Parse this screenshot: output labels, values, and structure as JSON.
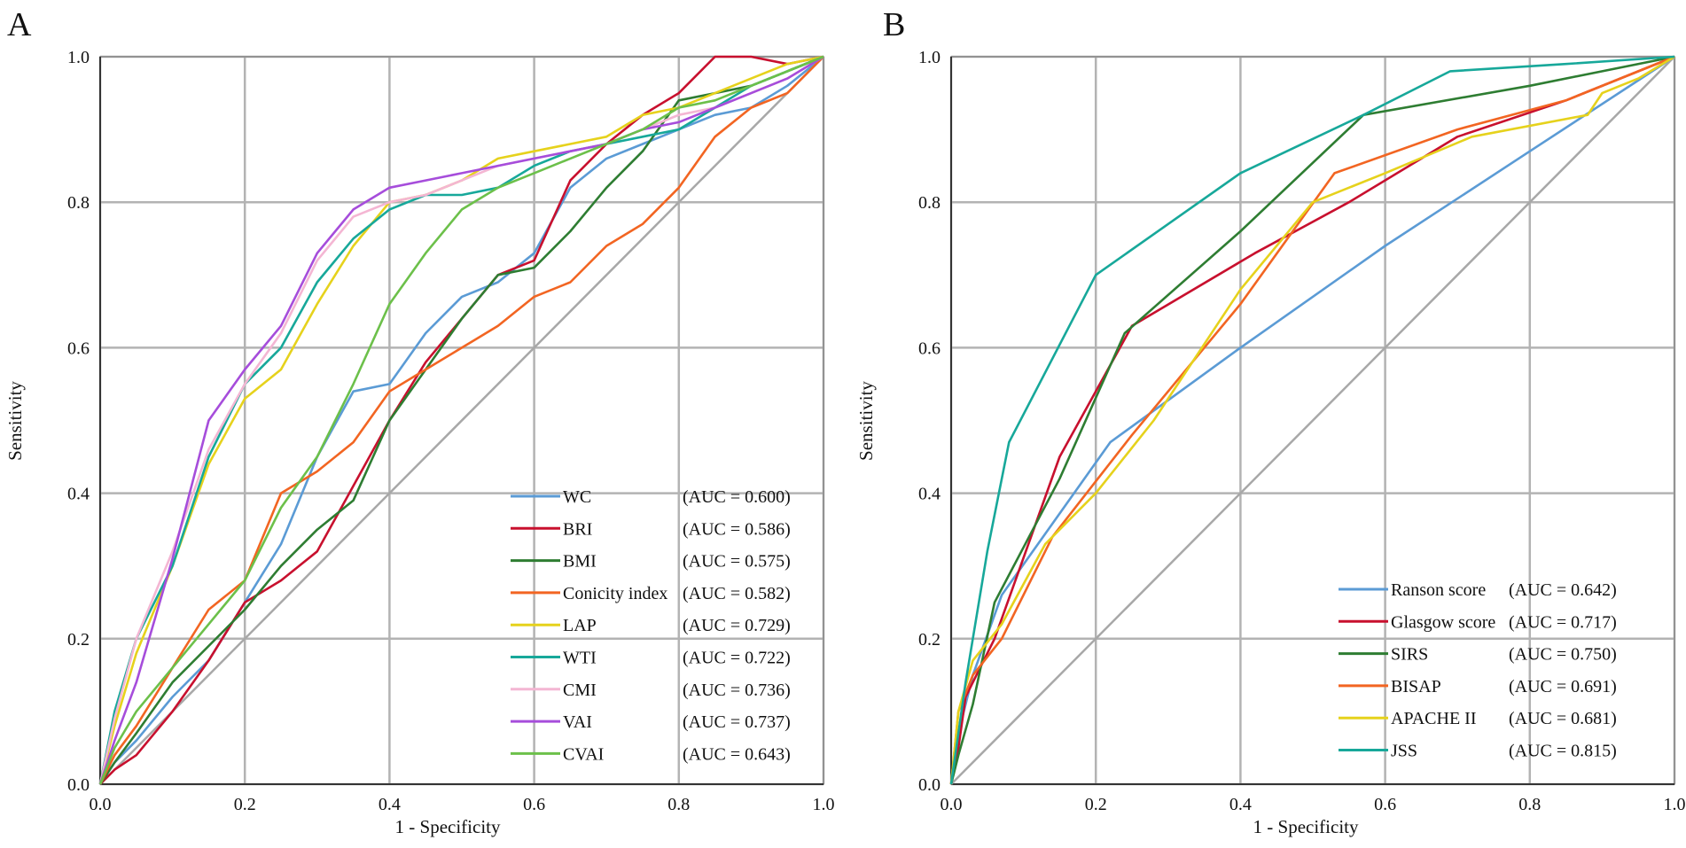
{
  "chart_data": [
    {
      "panel": "A",
      "type": "line",
      "xlabel": "1 - Specificity",
      "ylabel": "Sensitivity",
      "xlim": [
        0,
        1
      ],
      "ylim": [
        0,
        1
      ],
      "xticks": [
        "0.0",
        "0.2",
        "0.4",
        "0.6",
        "0.8",
        "1.0"
      ],
      "yticks": [
        "0.0",
        "0.2",
        "0.4",
        "0.6",
        "0.8",
        "1.0"
      ],
      "grid": true,
      "legend_position": "bottom-right",
      "reference_line": {
        "x": [
          0,
          1
        ],
        "y": [
          0,
          1
        ],
        "color": "#a8a8a8"
      },
      "series": [
        {
          "name": "WC",
          "auc_label": "(AUC = 0.600)",
          "color": "#5b9bd5",
          "x": [
            0,
            0.02,
            0.05,
            0.1,
            0.15,
            0.2,
            0.25,
            0.3,
            0.35,
            0.4,
            0.45,
            0.5,
            0.55,
            0.6,
            0.65,
            0.7,
            0.75,
            0.8,
            0.85,
            0.9,
            0.95,
            1.0
          ],
          "y": [
            0,
            0.03,
            0.06,
            0.12,
            0.17,
            0.25,
            0.33,
            0.45,
            0.54,
            0.55,
            0.62,
            0.67,
            0.69,
            0.73,
            0.82,
            0.86,
            0.88,
            0.9,
            0.92,
            0.93,
            0.96,
            1.0
          ]
        },
        {
          "name": "BRI",
          "auc_label": "(AUC = 0.586)",
          "color": "#c8102e",
          "x": [
            0,
            0.02,
            0.05,
            0.1,
            0.15,
            0.2,
            0.25,
            0.3,
            0.35,
            0.4,
            0.45,
            0.5,
            0.55,
            0.6,
            0.65,
            0.7,
            0.75,
            0.8,
            0.85,
            0.9,
            0.95,
            1.0
          ],
          "y": [
            0,
            0.02,
            0.04,
            0.1,
            0.17,
            0.25,
            0.28,
            0.32,
            0.41,
            0.5,
            0.58,
            0.64,
            0.7,
            0.72,
            0.83,
            0.88,
            0.92,
            0.95,
            1.0,
            1.0,
            0.99,
            1.0
          ]
        },
        {
          "name": "BMI",
          "auc_label": "(AUC = 0.575)",
          "color": "#2e7d32",
          "x": [
            0,
            0.02,
            0.05,
            0.1,
            0.15,
            0.2,
            0.25,
            0.3,
            0.35,
            0.4,
            0.45,
            0.5,
            0.55,
            0.6,
            0.65,
            0.7,
            0.75,
            0.8,
            0.85,
            0.9,
            0.95,
            1.0
          ],
          "y": [
            0,
            0.03,
            0.07,
            0.14,
            0.19,
            0.24,
            0.3,
            0.35,
            0.39,
            0.5,
            0.57,
            0.64,
            0.7,
            0.71,
            0.76,
            0.82,
            0.87,
            0.94,
            0.95,
            0.96,
            0.98,
            1.0
          ]
        },
        {
          "name": "Conicity index",
          "auc_label": "(AUC = 0.582)",
          "color": "#f26522",
          "x": [
            0,
            0.02,
            0.05,
            0.1,
            0.15,
            0.2,
            0.25,
            0.3,
            0.35,
            0.4,
            0.45,
            0.5,
            0.55,
            0.6,
            0.65,
            0.7,
            0.75,
            0.8,
            0.85,
            0.9,
            0.95,
            1.0
          ],
          "y": [
            0,
            0.04,
            0.08,
            0.16,
            0.24,
            0.28,
            0.4,
            0.43,
            0.47,
            0.54,
            0.57,
            0.6,
            0.63,
            0.67,
            0.69,
            0.74,
            0.77,
            0.82,
            0.89,
            0.93,
            0.95,
            1.0
          ]
        },
        {
          "name": "LAP",
          "auc_label": "(AUC = 0.729)",
          "color": "#e6d21c",
          "x": [
            0,
            0.02,
            0.05,
            0.1,
            0.15,
            0.2,
            0.25,
            0.3,
            0.35,
            0.4,
            0.45,
            0.5,
            0.55,
            0.6,
            0.65,
            0.7,
            0.75,
            0.8,
            0.85,
            0.9,
            0.95,
            1.0
          ],
          "y": [
            0,
            0.08,
            0.18,
            0.3,
            0.44,
            0.53,
            0.57,
            0.66,
            0.74,
            0.8,
            0.81,
            0.83,
            0.86,
            0.87,
            0.88,
            0.89,
            0.92,
            0.93,
            0.95,
            0.97,
            0.99,
            1.0
          ]
        },
        {
          "name": "WTI",
          "auc_label": "(AUC = 0.722)",
          "color": "#17a89a",
          "x": [
            0,
            0.02,
            0.05,
            0.1,
            0.15,
            0.2,
            0.25,
            0.3,
            0.35,
            0.4,
            0.45,
            0.5,
            0.55,
            0.6,
            0.65,
            0.7,
            0.75,
            0.8,
            0.85,
            0.9,
            0.95,
            1.0
          ],
          "y": [
            0,
            0.1,
            0.2,
            0.3,
            0.45,
            0.55,
            0.6,
            0.69,
            0.75,
            0.79,
            0.81,
            0.81,
            0.82,
            0.85,
            0.87,
            0.88,
            0.89,
            0.9,
            0.93,
            0.96,
            0.98,
            1.0
          ]
        },
        {
          "name": "CMI",
          "auc_label": "(AUC = 0.736)",
          "color": "#f4b6d3",
          "x": [
            0,
            0.02,
            0.05,
            0.1,
            0.15,
            0.2,
            0.25,
            0.3,
            0.35,
            0.4,
            0.45,
            0.5,
            0.55,
            0.6,
            0.65,
            0.7,
            0.75,
            0.8,
            0.85,
            0.9,
            0.95,
            1.0
          ],
          "y": [
            0,
            0.09,
            0.2,
            0.32,
            0.46,
            0.55,
            0.62,
            0.72,
            0.78,
            0.8,
            0.81,
            0.83,
            0.85,
            0.86,
            0.87,
            0.88,
            0.9,
            0.92,
            0.93,
            0.95,
            0.97,
            1.0
          ]
        },
        {
          "name": "VAI",
          "auc_label": "(AUC = 0.737)",
          "color": "#a64ddb",
          "x": [
            0,
            0.02,
            0.05,
            0.1,
            0.15,
            0.2,
            0.25,
            0.3,
            0.35,
            0.4,
            0.45,
            0.5,
            0.55,
            0.6,
            0.65,
            0.7,
            0.75,
            0.8,
            0.85,
            0.9,
            0.95,
            1.0
          ],
          "y": [
            0,
            0.06,
            0.14,
            0.31,
            0.5,
            0.57,
            0.63,
            0.73,
            0.79,
            0.82,
            0.83,
            0.84,
            0.85,
            0.86,
            0.87,
            0.88,
            0.9,
            0.91,
            0.93,
            0.95,
            0.97,
            1.0
          ]
        },
        {
          "name": "CVAI",
          "auc_label": "(AUC = 0.643)",
          "color": "#6cc04a",
          "x": [
            0,
            0.02,
            0.05,
            0.1,
            0.15,
            0.2,
            0.25,
            0.3,
            0.35,
            0.4,
            0.45,
            0.5,
            0.55,
            0.6,
            0.65,
            0.7,
            0.75,
            0.8,
            0.85,
            0.9,
            0.95,
            1.0
          ],
          "y": [
            0,
            0.05,
            0.1,
            0.16,
            0.22,
            0.28,
            0.38,
            0.45,
            0.55,
            0.66,
            0.73,
            0.79,
            0.82,
            0.84,
            0.86,
            0.88,
            0.9,
            0.93,
            0.94,
            0.96,
            0.98,
            1.0
          ]
        }
      ]
    },
    {
      "panel": "B",
      "type": "line",
      "xlabel": "1 - Specificity",
      "ylabel": "Sensitivity",
      "xlim": [
        0,
        1
      ],
      "ylim": [
        0,
        1
      ],
      "xticks": [
        "0.0",
        "0.2",
        "0.4",
        "0.6",
        "0.8",
        "1.0"
      ],
      "yticks": [
        "0.0",
        "0.2",
        "0.4",
        "0.6",
        "0.8",
        "1.0"
      ],
      "grid": true,
      "legend_position": "bottom-right",
      "reference_line": {
        "x": [
          0,
          1
        ],
        "y": [
          0,
          1
        ],
        "color": "#a8a8a8"
      },
      "series": [
        {
          "name": "Ranson score",
          "auc_label": "(AUC = 0.642)",
          "color": "#5b9bd5",
          "x": [
            0,
            0.01,
            0.03,
            0.07,
            0.22,
            0.4,
            0.6,
            0.8,
            1.0
          ],
          "y": [
            0,
            0.07,
            0.15,
            0.26,
            0.47,
            0.6,
            0.74,
            0.87,
            1.0
          ]
        },
        {
          "name": "Glasgow score",
          "auc_label": "(AUC = 0.717)",
          "color": "#c8102e",
          "x": [
            0,
            0.01,
            0.02,
            0.06,
            0.15,
            0.25,
            0.42,
            0.55,
            0.7,
            0.85,
            1.0
          ],
          "y": [
            0,
            0.05,
            0.12,
            0.2,
            0.45,
            0.63,
            0.73,
            0.8,
            0.89,
            0.94,
            1.0
          ]
        },
        {
          "name": "SIRS",
          "auc_label": "(AUC = 0.750)",
          "color": "#2e7d32",
          "x": [
            0,
            0.01,
            0.03,
            0.06,
            0.15,
            0.24,
            0.4,
            0.57,
            0.8,
            1.0
          ],
          "y": [
            0,
            0.04,
            0.11,
            0.25,
            0.42,
            0.62,
            0.76,
            0.92,
            0.96,
            1.0
          ]
        },
        {
          "name": "BISAP",
          "auc_label": "(AUC = 0.691)",
          "color": "#f26522",
          "x": [
            0,
            0.01,
            0.03,
            0.07,
            0.14,
            0.25,
            0.4,
            0.53,
            0.7,
            0.85,
            1.0
          ],
          "y": [
            0,
            0.1,
            0.15,
            0.2,
            0.34,
            0.48,
            0.66,
            0.84,
            0.9,
            0.94,
            1.0
          ]
        },
        {
          "name": "APACHE II",
          "auc_label": "(AUC = 0.681)",
          "color": "#e6d21c",
          "x": [
            0,
            0.01,
            0.03,
            0.07,
            0.13,
            0.2,
            0.28,
            0.4,
            0.5,
            0.6,
            0.72,
            0.88,
            0.9,
            0.95,
            1.0
          ],
          "y": [
            0,
            0.1,
            0.17,
            0.22,
            0.33,
            0.4,
            0.5,
            0.68,
            0.8,
            0.84,
            0.89,
            0.92,
            0.95,
            0.97,
            1.0
          ]
        },
        {
          "name": "JSS",
          "auc_label": "(AUC = 0.815)",
          "color": "#17a89a",
          "x": [
            0,
            0.02,
            0.05,
            0.08,
            0.2,
            0.4,
            0.57,
            0.69,
            0.85,
            1.0
          ],
          "y": [
            0,
            0.14,
            0.32,
            0.47,
            0.7,
            0.84,
            0.92,
            0.98,
            0.99,
            1.0
          ]
        }
      ]
    }
  ]
}
